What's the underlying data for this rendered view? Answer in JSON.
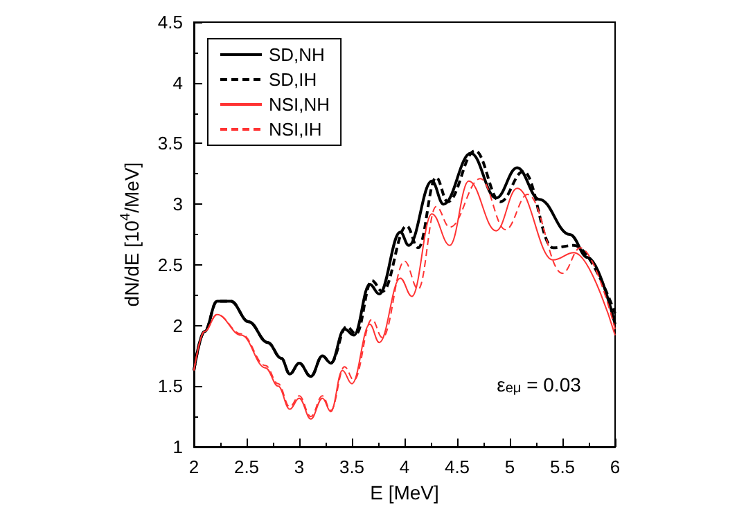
{
  "chart_data": {
    "type": "line",
    "xlabel": "E [MeV]",
    "ylabel": "dN/dE [10$^{4}$/MeV]",
    "xlim": [
      2,
      6
    ],
    "xticks": [
      2,
      2.5,
      3,
      3.5,
      4,
      4.5,
      5,
      5.5,
      6
    ],
    "ylim": [
      1,
      4.5
    ],
    "yticks": [
      1,
      1.5,
      2,
      2.5,
      3,
      3.5,
      4,
      4.5
    ],
    "grid": false,
    "legend": "top left",
    "marker": "none",
    "annotations": [
      "ε$_{eμ}$ = 0.03"
    ],
    "series": [
      {
        "name": "SD,NH",
        "color": "#000000",
        "line_style": "solid",
        "x": [
          2.0,
          2.1,
          2.22,
          2.35,
          2.52,
          2.7,
          2.83,
          2.91,
          3.0,
          3.11,
          3.22,
          3.3,
          3.43,
          3.52,
          3.67,
          3.76,
          3.96,
          4.04,
          4.26,
          4.37,
          4.63,
          4.87,
          5.07,
          5.28,
          5.57,
          5.74,
          6.0
        ],
        "values": [
          1.63,
          1.95,
          2.2,
          2.2,
          2.03,
          1.86,
          1.73,
          1.6,
          1.69,
          1.58,
          1.75,
          1.69,
          1.97,
          1.92,
          2.34,
          2.26,
          2.77,
          2.66,
          3.19,
          3.0,
          3.42,
          3.05,
          3.3,
          3.04,
          2.75,
          2.56,
          2.01
        ]
      },
      {
        "name": "SD,IH",
        "color": "#000000",
        "line_style": "dashed",
        "x": [
          2.0,
          2.1,
          2.22,
          2.35,
          2.52,
          2.7,
          2.83,
          2.91,
          3.0,
          3.11,
          3.22,
          3.3,
          3.45,
          3.54,
          3.69,
          3.79,
          4.02,
          4.13,
          4.3,
          4.41,
          4.67,
          4.91,
          5.13,
          5.41,
          5.61,
          6.0
        ],
        "values": [
          1.63,
          1.95,
          2.2,
          2.2,
          2.03,
          1.86,
          1.73,
          1.6,
          1.69,
          1.58,
          1.75,
          1.69,
          1.99,
          1.93,
          2.37,
          2.28,
          2.82,
          2.64,
          3.22,
          3.02,
          3.44,
          3.02,
          3.27,
          2.64,
          2.66,
          2.1
        ]
      },
      {
        "name": "NSI,NH",
        "color": "#ff3333",
        "line_style": "solid",
        "x": [
          2.0,
          2.1,
          2.22,
          2.45,
          2.68,
          2.8,
          2.91,
          3.0,
          3.11,
          3.22,
          3.3,
          3.41,
          3.5,
          3.67,
          3.76,
          3.96,
          4.07,
          4.26,
          4.43,
          4.61,
          4.87,
          5.07,
          5.41,
          5.61,
          6.0
        ],
        "values": [
          1.63,
          1.95,
          2.09,
          1.92,
          1.65,
          1.5,
          1.31,
          1.4,
          1.23,
          1.4,
          1.29,
          1.63,
          1.52,
          2.01,
          1.86,
          2.39,
          2.24,
          2.92,
          2.66,
          3.19,
          2.78,
          3.13,
          2.54,
          2.6,
          1.92
        ]
      },
      {
        "name": "NSI,IH",
        "color": "#ff3333",
        "line_style": "dashed",
        "x": [
          2.0,
          2.1,
          2.22,
          2.45,
          2.68,
          2.8,
          2.91,
          3.0,
          3.11,
          3.22,
          3.3,
          3.43,
          3.52,
          3.69,
          3.79,
          4.0,
          4.13,
          4.3,
          4.43,
          4.72,
          4.96,
          5.17,
          5.5,
          5.67,
          6.0
        ],
        "values": [
          1.63,
          1.95,
          2.09,
          1.93,
          1.67,
          1.52,
          1.33,
          1.42,
          1.25,
          1.42,
          1.3,
          1.66,
          1.55,
          2.05,
          1.9,
          2.53,
          2.3,
          2.98,
          2.81,
          3.21,
          2.79,
          3.08,
          2.43,
          2.64,
          1.97
        ]
      }
    ]
  }
}
